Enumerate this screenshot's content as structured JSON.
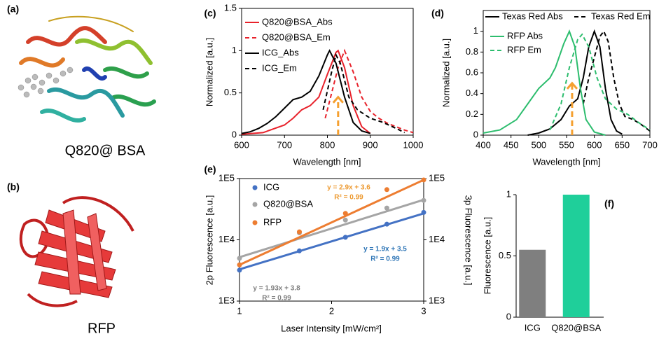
{
  "figures": [
    {
      "panel": "(a)",
      "caption": "Q820@ BSA"
    },
    {
      "panel": "(b)",
      "caption": "RFP"
    }
  ],
  "chart_data": [
    {
      "type": "line",
      "panel": "(c)",
      "xlabel": "Wavelength [nm]",
      "ylabel": "Normalized [a.u.]",
      "xlim": [
        600,
        1000
      ],
      "xticks": [
        600,
        700,
        800,
        900,
        1000
      ],
      "ylim": [
        0,
        1.5
      ],
      "yticks": [
        0,
        0.5,
        1,
        1.5
      ],
      "legend": "upper left",
      "series": [
        {
          "name": "Q820@BSA_Abs",
          "color": "#e8222b",
          "line_style": "solid",
          "x": [
            600,
            650,
            700,
            720,
            740,
            760,
            780,
            800,
            820,
            825,
            840,
            860,
            880,
            900
          ],
          "values": [
            0.01,
            0.03,
            0.12,
            0.2,
            0.3,
            0.35,
            0.45,
            0.72,
            0.98,
            1.0,
            0.8,
            0.35,
            0.1,
            0.02
          ]
        },
        {
          "name": "Q820@BSA_Em",
          "color": "#e8222b",
          "line_style": "dashed",
          "x": [
            795,
            810,
            825,
            840,
            860,
            880,
            900,
            920,
            940,
            960,
            980,
            1000
          ],
          "values": [
            0.2,
            0.5,
            0.8,
            1.0,
            0.75,
            0.45,
            0.28,
            0.2,
            0.14,
            0.1,
            0.06,
            0.03
          ]
        },
        {
          "name": "ICG_Abs",
          "color": "#000000",
          "line_style": "solid",
          "x": [
            600,
            620,
            640,
            660,
            680,
            700,
            720,
            740,
            760,
            780,
            800,
            805,
            820,
            840,
            860,
            880,
            900
          ],
          "values": [
            0.02,
            0.04,
            0.08,
            0.14,
            0.22,
            0.32,
            0.42,
            0.45,
            0.52,
            0.7,
            0.95,
            1.0,
            0.85,
            0.45,
            0.15,
            0.05,
            0.02
          ]
        },
        {
          "name": "ICG_Em",
          "color": "#000000",
          "line_style": "dashed",
          "x": [
            790,
            810,
            820,
            830,
            850,
            870,
            900,
            930,
            960,
            980
          ],
          "values": [
            0.3,
            0.75,
            0.95,
            0.85,
            0.45,
            0.3,
            0.2,
            0.15,
            0.08,
            0.03
          ]
        }
      ],
      "arrow": {
        "x": 825,
        "y": [
          0,
          0.45
        ],
        "color": "#f5a030"
      }
    },
    {
      "type": "line",
      "panel": "(d)",
      "xlabel": "Wavelength [nm]",
      "ylabel": "Normalized [a.u.]",
      "xlim": [
        400,
        700
      ],
      "xticks": [
        400,
        450,
        500,
        550,
        600,
        650,
        700
      ],
      "ylim": [
        0,
        1.2
      ],
      "yticks": [
        0,
        0.2,
        0.4,
        0.6,
        0.8,
        1
      ],
      "legend": "upper center",
      "series": [
        {
          "name": "Texas Red Abs",
          "color": "#000000",
          "line_style": "solid",
          "x": [
            480,
            500,
            520,
            540,
            555,
            570,
            580,
            590,
            600,
            610,
            620,
            630,
            640,
            650
          ],
          "values": [
            0,
            0.02,
            0.06,
            0.15,
            0.28,
            0.35,
            0.55,
            0.85,
            1.0,
            0.85,
            0.45,
            0.15,
            0.04,
            0.01
          ]
        },
        {
          "name": "Texas Red Em",
          "color": "#000000",
          "line_style": "dashed",
          "x": [
            580,
            590,
            600,
            610,
            617,
            625,
            635,
            645,
            655,
            670,
            685,
            700
          ],
          "values": [
            0.3,
            0.55,
            0.75,
            0.95,
            1.0,
            0.9,
            0.55,
            0.3,
            0.18,
            0.15,
            0.1,
            0.04
          ]
        },
        {
          "name": "RFP Abs",
          "color": "#2dbd6e",
          "line_style": "solid",
          "x": [
            400,
            430,
            460,
            480,
            500,
            520,
            530,
            545,
            555,
            565,
            575,
            585,
            600,
            620
          ],
          "values": [
            0.02,
            0.05,
            0.15,
            0.3,
            0.45,
            0.55,
            0.65,
            0.88,
            1.0,
            0.85,
            0.45,
            0.15,
            0.03,
            0
          ]
        },
        {
          "name": "RFP Em",
          "color": "#2dbd6e",
          "line_style": "dashed",
          "x": [
            520,
            540,
            555,
            570,
            578,
            590,
            605,
            620,
            640,
            660,
            680,
            700
          ],
          "values": [
            0.05,
            0.3,
            0.65,
            0.92,
            0.97,
            0.85,
            0.55,
            0.35,
            0.25,
            0.2,
            0.12,
            0.05
          ]
        }
      ],
      "arrow": {
        "x": 560,
        "y": [
          0,
          0.5
        ],
        "color": "#f5a030"
      }
    },
    {
      "type": "scatter",
      "panel": "(e)",
      "xlabel": "Laser Intensity [mW/cm²]",
      "ylabel": "2p Fluorescence [a.u.]",
      "y2label": "3p Fluorescence [a.u.]",
      "x": [
        1,
        1.65,
        2.15,
        2.6,
        3
      ],
      "xlim": [
        1,
        3
      ],
      "xticks": [
        1,
        2,
        3
      ],
      "log_scale": true,
      "ylim": [
        1000,
        100000
      ],
      "yticks": [
        {
          "value": 1000,
          "label": "1E3"
        },
        {
          "value": 10000,
          "label": "1E4"
        },
        {
          "value": 100000,
          "label": "1E5"
        }
      ],
      "y2lim": [
        1000,
        100000
      ],
      "y2ticks": [
        {
          "value": 1000,
          "label": "1E3"
        },
        {
          "value": 10000,
          "label": "1E4"
        },
        {
          "value": 100000,
          "label": "1E5"
        }
      ],
      "legend": "upper left",
      "fit_x": [
        1,
        3
      ],
      "series": [
        {
          "name": "ICG",
          "color": "#4472c4",
          "values": [
            3200,
            6600,
            11000,
            18000,
            28000
          ],
          "fit": [
            3300,
            27000
          ]
        },
        {
          "name": "Q820@BSA",
          "color": "#a5a5a5",
          "values": [
            5000,
            13000,
            21000,
            33000,
            44000
          ],
          "fit": [
            5200,
            45000
          ]
        },
        {
          "name": "RFP",
          "color": "#ed7d31",
          "values": [
            3900,
            13500,
            27000,
            66000,
            95000
          ],
          "fit": [
            3900,
            95000
          ]
        }
      ],
      "annotations": [
        {
          "text": "y = 2.9x + 3.6",
          "color": "#ed9a31"
        },
        {
          "text": "R² = 0.99",
          "color": "#ed9a31"
        },
        {
          "text": "y = 1.9x + 3.5",
          "color": "#2e75b6"
        },
        {
          "text": "R² = 0.99",
          "color": "#2e75b6"
        },
        {
          "text": "y = 1.93x + 3.8",
          "color": "#7f7f7f"
        },
        {
          "text": "R² = 0.99",
          "color": "#7f7f7f"
        }
      ]
    },
    {
      "type": "bar",
      "panel": "(f)",
      "ylabel": "Fluorescence [a.u.]",
      "categories": [
        "ICG",
        "Q820@BSA"
      ],
      "values": [
        0.55,
        1
      ],
      "colors": [
        "#7f7f7f",
        "#1fcf9a"
      ],
      "ylim": [
        0,
        1
      ],
      "yticks": [
        0,
        0.5,
        1
      ]
    }
  ]
}
